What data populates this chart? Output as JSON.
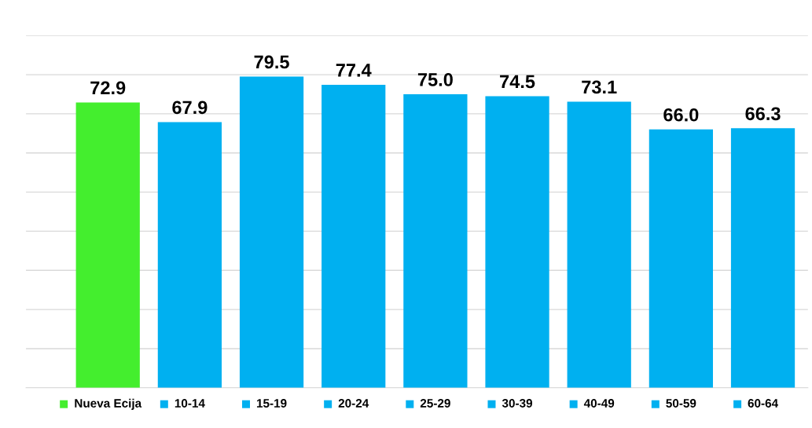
{
  "chart_data": {
    "type": "bar",
    "categories": [
      "Nueva Ecija",
      "10-14",
      "15-19",
      "20-24",
      "25-29",
      "30-39",
      "40-49",
      "50-59",
      "60-64"
    ],
    "values": [
      72.9,
      67.9,
      79.5,
      77.4,
      75.0,
      74.5,
      73.1,
      66.0,
      66.3
    ],
    "value_labels": [
      "72.9",
      "67.9",
      "79.5",
      "77.4",
      "75.0",
      "74.5",
      "73.1",
      "66.0",
      "66.3"
    ],
    "colors": [
      "#44ee2e",
      "#00b0f0",
      "#00b0f0",
      "#00b0f0",
      "#00b0f0",
      "#00b0f0",
      "#00b0f0",
      "#00b0f0",
      "#00b0f0"
    ],
    "ylim": [
      0,
      90
    ],
    "yticks": [
      {
        "value": 0,
        "label": null
      },
      {
        "value": 10,
        "label": null
      },
      {
        "value": 20,
        "label": null
      },
      {
        "value": 30,
        "label": null
      },
      {
        "value": 40,
        "label": null
      },
      {
        "value": 50,
        "label": null
      },
      {
        "value": 60,
        "label": null
      },
      {
        "value": 70,
        "label": null
      },
      {
        "value": 80,
        "label": null
      },
      {
        "value": 90,
        "label": null
      }
    ],
    "grid": "y",
    "tick_labels": "x"
  }
}
